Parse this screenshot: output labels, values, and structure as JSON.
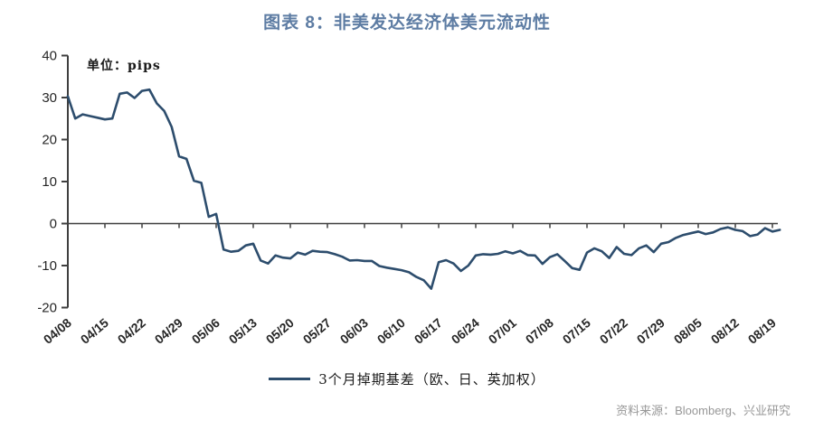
{
  "title": "图表 8：非美发达经济体美元流动性",
  "source": "资料来源：Bloomberg、兴业研究",
  "colors": {
    "title": "#5d7ca3",
    "line": "#2d4d6d",
    "axis": "#3f3f3f",
    "tick_label": "#262626",
    "source_text": "#979797"
  },
  "chart_data": {
    "type": "line",
    "title": "图表 8：非美发达经济体美元流动性",
    "unit_label": "单位：pips",
    "legend": [
      "3个月掉期基差（欧、日、英加权）"
    ],
    "legend_position": "bottom",
    "grid": false,
    "ylim": [
      -20,
      40
    ],
    "yticks": [
      40,
      30,
      20,
      10,
      0,
      -10,
      -20
    ],
    "x_tick_labels": [
      "04/08",
      "04/15",
      "04/22",
      "04/29",
      "05/06",
      "05/13",
      "05/20",
      "05/27",
      "06/03",
      "06/10",
      "06/17",
      "06/24",
      "07/01",
      "07/08",
      "07/15",
      "07/22",
      "07/29",
      "08/05",
      "08/12",
      "08/19"
    ],
    "x": [
      "04/08",
      "04/09",
      "04/10",
      "04/13",
      "04/14",
      "04/15",
      "04/16",
      "04/17",
      "04/20",
      "04/21",
      "04/22",
      "04/23",
      "04/24",
      "04/27",
      "04/28",
      "04/29",
      "04/30",
      "05/01",
      "05/04",
      "05/05",
      "05/06",
      "05/07",
      "05/08",
      "05/11",
      "05/12",
      "05/13",
      "05/14",
      "05/15",
      "05/18",
      "05/19",
      "05/20",
      "05/21",
      "05/22",
      "05/25",
      "05/26",
      "05/27",
      "05/28",
      "05/29",
      "06/01",
      "06/02",
      "06/03",
      "06/04",
      "06/05",
      "06/08",
      "06/09",
      "06/10",
      "06/11",
      "06/12",
      "06/15",
      "06/16",
      "06/17",
      "06/18",
      "06/19",
      "06/22",
      "06/23",
      "06/24",
      "06/25",
      "06/26",
      "06/29",
      "06/30",
      "07/01",
      "07/02",
      "07/03",
      "07/06",
      "07/07",
      "07/08",
      "07/09",
      "07/10",
      "07/13",
      "07/14",
      "07/15",
      "07/16",
      "07/17",
      "07/20",
      "07/21",
      "07/22",
      "07/23",
      "07/24",
      "07/27",
      "07/28",
      "07/29",
      "07/30",
      "07/31",
      "08/03",
      "08/04",
      "08/05",
      "08/06",
      "08/07",
      "08/10",
      "08/11",
      "08/12",
      "08/13",
      "08/14",
      "08/17",
      "08/18",
      "08/19",
      "08/20"
    ],
    "series": [
      {
        "name": "3个月掉期基差（欧、日、英加权）",
        "values": [
          30.3,
          25.0,
          26.0,
          25.6,
          25.2,
          24.8,
          25.0,
          30.9,
          31.2,
          29.9,
          31.6,
          31.9,
          28.6,
          26.8,
          23.0,
          16.0,
          15.4,
          10.2,
          9.7,
          1.6,
          2.3,
          -6.2,
          -6.7,
          -6.5,
          -5.2,
          -4.8,
          -8.8,
          -9.5,
          -7.6,
          -8.1,
          -8.3,
          -6.9,
          -7.4,
          -6.5,
          -6.7,
          -6.8,
          -7.3,
          -7.9,
          -8.8,
          -8.7,
          -8.9,
          -8.9,
          -10.1,
          -10.5,
          -10.8,
          -11.1,
          -11.6,
          -12.7,
          -13.5,
          -15.5,
          -9.2,
          -8.7,
          -9.5,
          -11.3,
          -10.0,
          -7.6,
          -7.3,
          -7.4,
          -7.2,
          -6.6,
          -7.1,
          -6.5,
          -7.5,
          -7.6,
          -9.6,
          -8.0,
          -7.3,
          -8.9,
          -10.6,
          -11.0,
          -6.9,
          -5.9,
          -6.6,
          -8.2,
          -5.6,
          -7.2,
          -7.5,
          -5.9,
          -5.2,
          -6.8,
          -4.8,
          -4.4,
          -3.4,
          -2.7,
          -2.3,
          -1.9,
          -2.5,
          -2.1,
          -1.3,
          -0.9,
          -1.5,
          -1.8,
          -3.0,
          -2.6,
          -1.1,
          -1.9,
          -1.5
        ]
      }
    ]
  }
}
